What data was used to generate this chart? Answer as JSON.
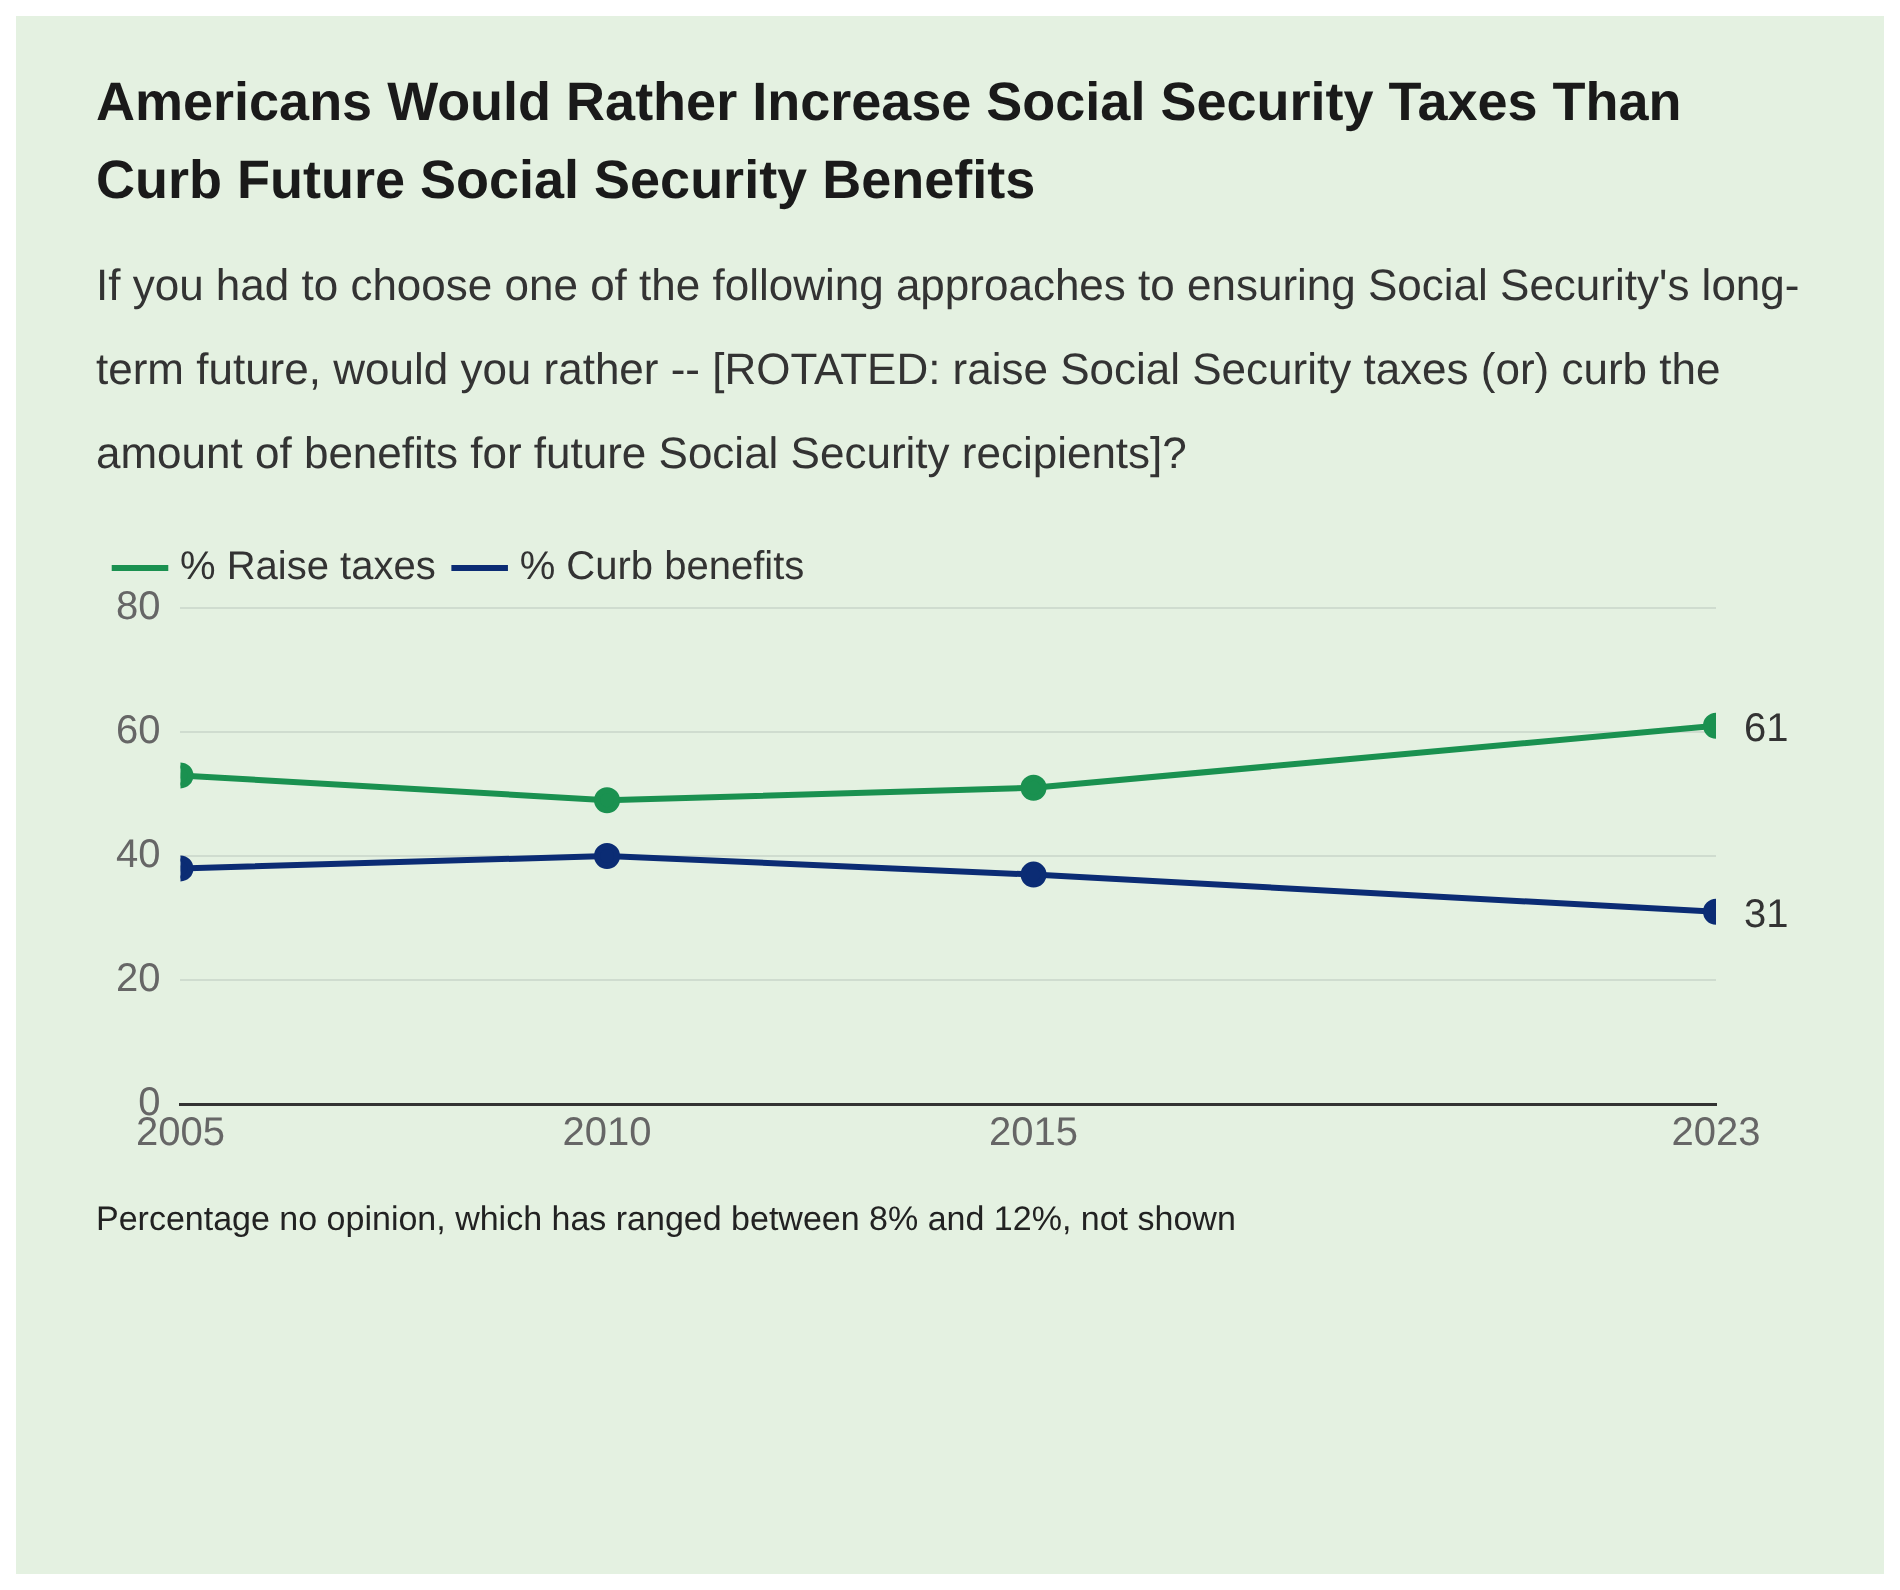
{
  "chart_data": {
    "type": "line",
    "title": "Americans Would Rather Increase Social Security Taxes Than Curb Future Social Security Benefits",
    "subtitle": "If you had to choose one of the following approaches to ensuring Social Security's long-term future, would you rather -- [ROTATED: raise Social Security taxes (or) curb the amount of benefits for future Social Security recipients]?",
    "x": [
      2005,
      2010,
      2015,
      2023
    ],
    "xlim": [
      2005,
      2023
    ],
    "xticks": [
      2005,
      2010,
      2015,
      2023
    ],
    "ylim": [
      0,
      80
    ],
    "yticks": [
      0,
      20,
      40,
      60,
      80
    ],
    "grid": "y",
    "legend": "top left",
    "marker": "circle",
    "line_style": "solid",
    "series": [
      {
        "name": "% Raise taxes",
        "color": "#1a9150",
        "values": [
          53,
          49,
          51,
          61
        ],
        "value_labels": [
          null,
          null,
          null,
          "61"
        ]
      },
      {
        "name": "% Curb benefits",
        "color": "#0b2c74",
        "values": [
          38,
          40,
          37,
          31
        ],
        "value_labels": [
          null,
          null,
          null,
          "31"
        ]
      }
    ],
    "annotations": [
      "Percentage no opinion, which has ranged between 8% and 12%, not shown"
    ]
  }
}
